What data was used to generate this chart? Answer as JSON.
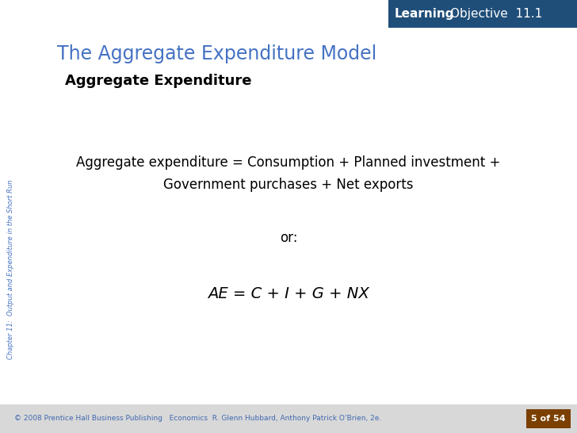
{
  "bg_color": "#ffffff",
  "header_bg_color": "#1f4e79",
  "header_text_bold": "Learning",
  "header_text_normal": "Objective  11.1",
  "title_text": "The Aggregate Expenditure Model",
  "title_color": "#4472c4",
  "subtitle_text": "Aggregate Expenditure",
  "subtitle_color": "#000000",
  "body_line1": "Aggregate expenditure = Consumption + Planned investment +",
  "body_line2": "Government purchases + Net exports",
  "body_color": "#000000",
  "or_text": "or:",
  "formula_text": "AE = C + I + G + NX",
  "side_text": "Chapter 11:  Output and Expenditure in the Short Run",
  "side_color": "#4472c4",
  "footer_text": "© 2008 Prentice Hall Business Publishing   Economics  R. Glenn Hubbard, Anthony Patrick O’Brien, 2e.",
  "footer_color": "#4169b0",
  "page_badge_text": "5 of 54",
  "page_badge_bg": "#7b3f00",
  "footer_bg": "#d8d8d8"
}
